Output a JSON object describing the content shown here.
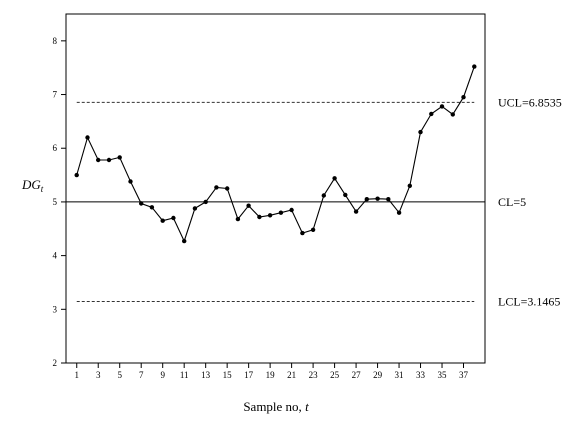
{
  "chart_data": {
    "type": "line",
    "title": "",
    "xlabel": "Sample no, t",
    "xlabel_text": "Sample no, ",
    "xlabel_var": "t",
    "ylabel": "DGt",
    "ylabel_main": "DG",
    "ylabel_sub": "t",
    "xlim": [
      0,
      39
    ],
    "ylim": [
      2,
      8.5
    ],
    "x_ticks": [
      1,
      3,
      5,
      7,
      9,
      11,
      13,
      15,
      17,
      19,
      21,
      23,
      25,
      27,
      29,
      31,
      33,
      35,
      37
    ],
    "y_ticks": [
      2,
      3,
      4,
      5,
      6,
      7,
      8
    ],
    "grid": false,
    "legend": "none",
    "control_limits": [
      {
        "name": "UCL",
        "label": "UCL=6.8535",
        "value": 6.8535,
        "style": "dashed"
      },
      {
        "name": "CL",
        "label": "CL=5",
        "value": 5,
        "style": "solid"
      },
      {
        "name": "LCL",
        "label": "LCL=3.1465",
        "value": 3.1465,
        "style": "dashed"
      }
    ],
    "series": [
      {
        "x": [
          1,
          2,
          3,
          4,
          5,
          6,
          7,
          8,
          9,
          10,
          11,
          12,
          13,
          14,
          15,
          16,
          17,
          18,
          19,
          20,
          21,
          22,
          23,
          24,
          25,
          26,
          27,
          28,
          29,
          30,
          31,
          32,
          33,
          34,
          35,
          36,
          37,
          38
        ],
        "values": [
          5.5,
          6.2,
          5.78,
          5.78,
          5.83,
          5.38,
          4.97,
          4.9,
          4.65,
          4.7,
          4.27,
          4.88,
          5.0,
          5.27,
          5.25,
          4.68,
          4.93,
          4.72,
          4.75,
          4.8,
          4.85,
          4.42,
          4.48,
          5.12,
          5.44,
          5.13,
          4.82,
          5.05,
          5.06,
          5.05,
          4.8,
          5.3,
          6.3,
          6.64,
          6.78,
          6.63,
          6.95,
          7.52
        ]
      }
    ]
  }
}
